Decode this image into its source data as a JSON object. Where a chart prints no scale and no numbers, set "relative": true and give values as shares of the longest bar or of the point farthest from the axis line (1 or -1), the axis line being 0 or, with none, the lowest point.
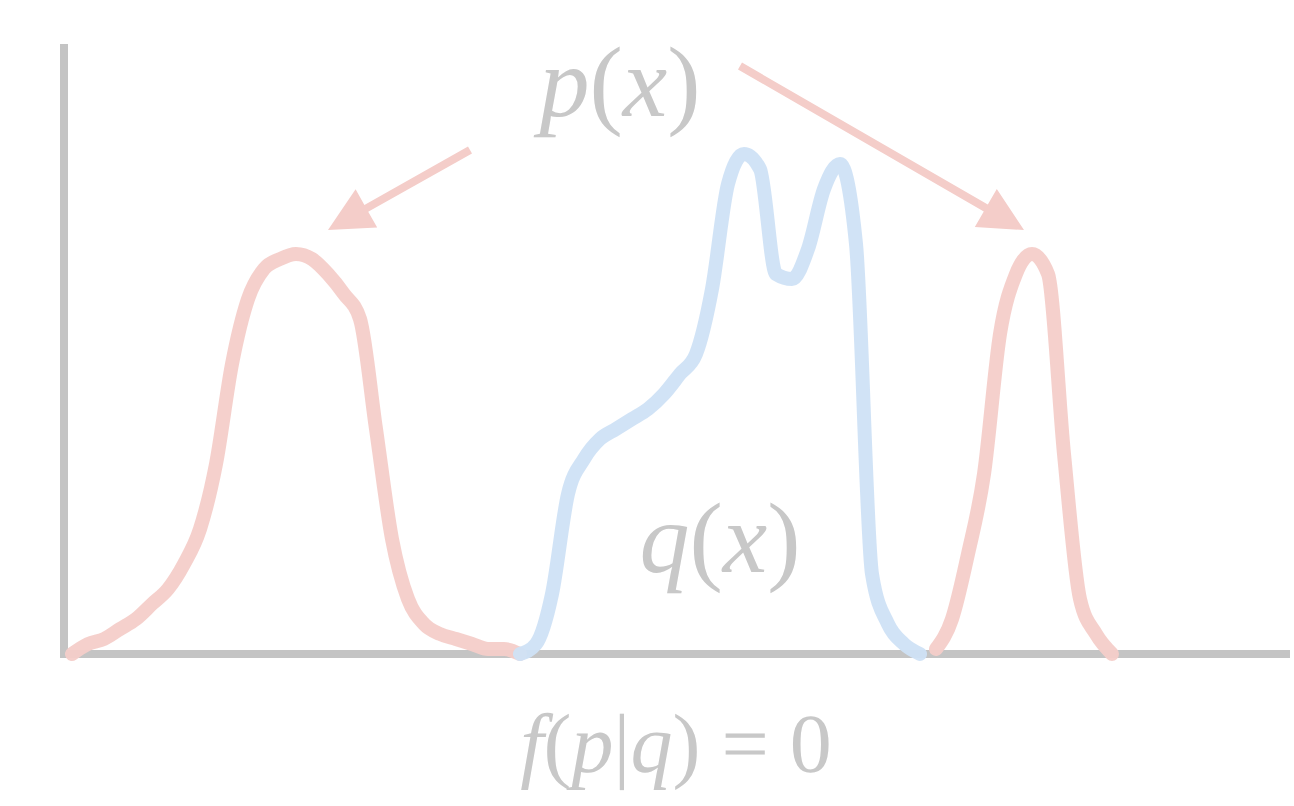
{
  "chart_data": {
    "type": "line",
    "relative": true,
    "xlabel": "f(p|q) = 0",
    "categories": [
      null,
      null,
      null,
      null,
      null,
      null,
      null,
      null,
      null,
      null,
      null,
      null,
      null,
      null,
      null,
      null,
      null,
      null,
      null,
      null,
      null,
      null,
      null,
      null,
      null,
      null,
      null,
      null,
      null,
      null,
      null,
      null,
      null,
      null,
      null,
      null,
      null,
      null,
      null,
      null,
      null,
      null,
      null,
      null,
      null,
      null,
      null,
      null,
      null,
      null,
      null,
      null,
      null,
      null,
      null,
      null,
      null,
      null,
      null,
      null,
      null,
      null,
      null,
      null,
      null,
      null,
      null,
      null,
      null,
      null,
      null,
      null,
      null,
      null,
      null,
      null,
      null
    ],
    "series": [
      {
        "name": "p(x)",
        "color": "#f4cdc9",
        "values": [
          0.0,
          0.02,
          0.03,
          0.05,
          0.07,
          0.1,
          0.13,
          0.18,
          0.25,
          0.38,
          0.58,
          0.71,
          0.77,
          0.79,
          0.8,
          0.79,
          0.76,
          0.72,
          0.67,
          0.45,
          0.23,
          0.11,
          0.06,
          0.04,
          0.03,
          0.02,
          0.01,
          0.01,
          0.0,
          null,
          null,
          null,
          null,
          null,
          null,
          null,
          null,
          null,
          null,
          null,
          null,
          null,
          null,
          null,
          null,
          null,
          null,
          null,
          null,
          null,
          null,
          null,
          null,
          null,
          0.01,
          0.07,
          0.2,
          0.36,
          0.64,
          0.76,
          0.8,
          0.76,
          0.4,
          0.11,
          0.04,
          0.0,
          null,
          null,
          null,
          null,
          null,
          null,
          null,
          null,
          null,
          null,
          null
        ]
      },
      {
        "name": "q(x)",
        "color": "#cfe2f5",
        "values": [
          null,
          null,
          null,
          null,
          null,
          null,
          null,
          null,
          null,
          null,
          null,
          null,
          null,
          null,
          null,
          null,
          null,
          null,
          null,
          null,
          null,
          null,
          null,
          null,
          null,
          null,
          null,
          null,
          0.0,
          0.02,
          0.12,
          0.32,
          0.39,
          0.43,
          0.45,
          0.47,
          0.49,
          0.52,
          0.56,
          0.6,
          0.73,
          0.94,
          1.0,
          0.97,
          0.76,
          0.75,
          0.81,
          0.93,
          0.98,
          0.82,
          0.16,
          0.06,
          0.02,
          0.0,
          null,
          null,
          null,
          null,
          null,
          null,
          null,
          null,
          null,
          null,
          null,
          null,
          null,
          null,
          null,
          null,
          null,
          null,
          null,
          null,
          null,
          null,
          null
        ]
      }
    ]
  }
}
